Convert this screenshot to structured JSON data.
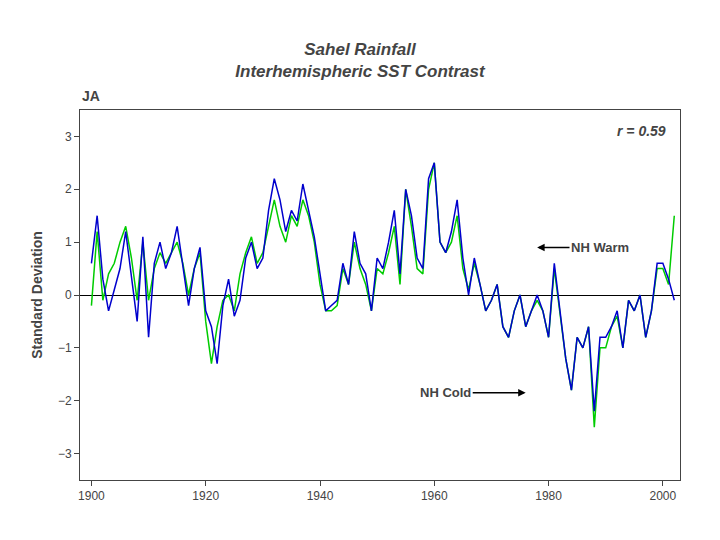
{
  "chart_data": {
    "type": "line",
    "title": [
      "Sahel Rainfall",
      "Interhemispheric SST Contrast"
    ],
    "subtitle": "JA",
    "ylabel": "Standard Deviation",
    "x": [
      1900,
      1901,
      1902,
      1903,
      1904,
      1905,
      1906,
      1907,
      1908,
      1909,
      1910,
      1911,
      1912,
      1913,
      1914,
      1915,
      1916,
      1917,
      1918,
      1919,
      1920,
      1921,
      1922,
      1923,
      1924,
      1925,
      1926,
      1927,
      1928,
      1929,
      1930,
      1931,
      1932,
      1933,
      1934,
      1935,
      1936,
      1937,
      1938,
      1939,
      1940,
      1941,
      1942,
      1943,
      1944,
      1945,
      1946,
      1947,
      1948,
      1949,
      1950,
      1951,
      1952,
      1953,
      1954,
      1955,
      1956,
      1957,
      1958,
      1959,
      1960,
      1961,
      1962,
      1963,
      1964,
      1965,
      1966,
      1967,
      1968,
      1969,
      1970,
      1971,
      1972,
      1973,
      1974,
      1975,
      1976,
      1977,
      1978,
      1979,
      1980,
      1981,
      1982,
      1983,
      1984,
      1985,
      1986,
      1987,
      1988,
      1989,
      1990,
      1991,
      1992,
      1993,
      1994,
      1995,
      1996,
      1997,
      1998,
      1999,
      2000,
      2001,
      2002
    ],
    "series": [
      {
        "color": "#00CC00",
        "values": [
          -0.2,
          1.2,
          -0.1,
          0.4,
          0.6,
          1.0,
          1.3,
          0.7,
          -0.1,
          1.0,
          -0.1,
          0.5,
          0.8,
          0.6,
          0.8,
          1.0,
          0.6,
          0.0,
          0.5,
          0.8,
          -0.5,
          -1.3,
          -0.6,
          -0.1,
          0.0,
          -0.3,
          0.4,
          0.8,
          1.1,
          0.6,
          0.8,
          1.3,
          1.8,
          1.3,
          1.0,
          1.5,
          1.3,
          1.8,
          1.5,
          1.0,
          0.2,
          -0.3,
          -0.3,
          -0.2,
          0.5,
          0.2,
          1.0,
          0.5,
          0.2,
          -0.3,
          0.5,
          0.4,
          0.8,
          1.3,
          0.2,
          2.0,
          1.3,
          0.5,
          0.4,
          2.0,
          2.5,
          1.0,
          0.8,
          1.0,
          1.5,
          0.5,
          0.1,
          0.6,
          0.2,
          -0.3,
          -0.1,
          0.2,
          -0.6,
          -0.8,
          -0.3,
          0.0,
          -0.6,
          -0.3,
          -0.1,
          -0.3,
          -0.8,
          0.5,
          -0.3,
          -1.2,
          -1.8,
          -0.8,
          -1.0,
          -0.6,
          -2.5,
          -1.0,
          -1.0,
          -0.6,
          -0.4,
          -1.0,
          -0.1,
          -0.3,
          0.0,
          -0.8,
          -0.3,
          0.5,
          0.5,
          0.2,
          1.5
        ]
      },
      {
        "color": "#0000CD",
        "values": [
          0.6,
          1.5,
          0.3,
          -0.3,
          0.1,
          0.5,
          1.2,
          0.4,
          -0.5,
          1.1,
          -0.8,
          0.6,
          1.0,
          0.5,
          0.8,
          1.3,
          0.5,
          -0.2,
          0.5,
          0.9,
          -0.3,
          -0.6,
          -1.3,
          -0.2,
          0.3,
          -0.4,
          -0.1,
          0.7,
          1.0,
          0.5,
          0.7,
          1.6,
          2.2,
          1.8,
          1.2,
          1.6,
          1.4,
          2.1,
          1.6,
          1.1,
          0.4,
          -0.3,
          -0.2,
          -0.1,
          0.6,
          0.2,
          1.2,
          0.6,
          0.4,
          -0.3,
          0.7,
          0.5,
          1.0,
          1.6,
          0.4,
          2.0,
          1.5,
          0.7,
          0.5,
          2.2,
          2.5,
          1.0,
          0.8,
          1.2,
          1.8,
          0.7,
          0.0,
          0.7,
          0.2,
          -0.3,
          -0.1,
          0.2,
          -0.6,
          -0.8,
          -0.3,
          0.0,
          -0.6,
          -0.3,
          0.0,
          -0.3,
          -0.8,
          0.6,
          -0.3,
          -1.2,
          -1.8,
          -0.8,
          -1.0,
          -0.6,
          -2.2,
          -0.8,
          -0.8,
          -0.6,
          -0.3,
          -1.0,
          -0.1,
          -0.3,
          0.0,
          -0.8,
          -0.3,
          0.6,
          0.6,
          0.3,
          -0.1
        ]
      }
    ],
    "xlim": [
      1898,
      2003
    ],
    "ylim": [
      -3.5,
      3.5
    ],
    "xticks": [
      1900,
      1920,
      1940,
      1960,
      1980,
      2000
    ],
    "yticks": [
      -3,
      -2,
      -1,
      0,
      1,
      2,
      3
    ],
    "grid": false,
    "annotations": [
      {
        "text": "r = 0.59"
      },
      {
        "text": "NH Warm",
        "x": 1978,
        "y": 0.9,
        "text_x": 1989
      },
      {
        "text": "NH Cold",
        "x": 1976,
        "y": -1.85,
        "text_x": 1962
      }
    ]
  }
}
